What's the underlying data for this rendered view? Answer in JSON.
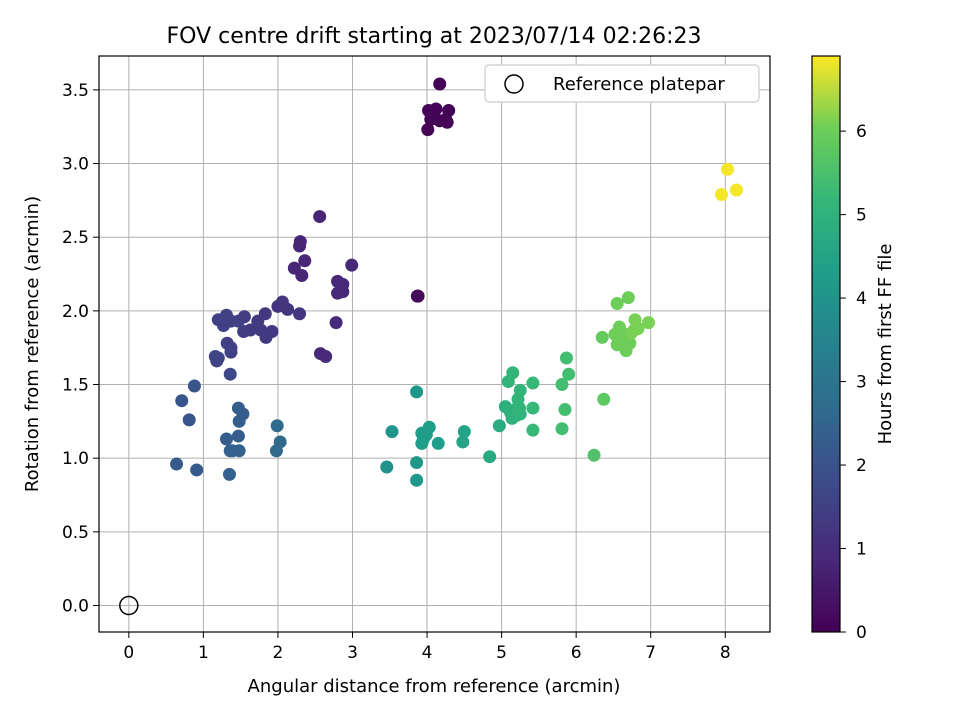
{
  "chart_data": {
    "type": "scatter",
    "title": "FOV centre drift starting at 2023/07/14 02:26:23",
    "xlabel": "Angular distance from reference (arcmin)",
    "ylabel": "Rotation from reference (arcmin)",
    "xlim": [
      -0.4,
      8.6
    ],
    "ylim": [
      -0.18,
      3.73
    ],
    "xticks": [
      "0",
      "1",
      "2",
      "3",
      "4",
      "5",
      "6",
      "7",
      "8"
    ],
    "yticks": [
      "0.0",
      "0.5",
      "1.0",
      "1.5",
      "2.0",
      "2.5",
      "3.0",
      "3.5"
    ],
    "grid": true,
    "legend": {
      "placement": "top-right",
      "entries": [
        "Reference platepar"
      ]
    },
    "reference_point": {
      "x": 0.0,
      "y": 0.0
    },
    "colorbar": {
      "label": "Hours from first FF file",
      "colormap": "viridis",
      "range": [
        0,
        6.9
      ],
      "ticks": [
        "0",
        "1",
        "2",
        "3",
        "4",
        "5",
        "6"
      ]
    },
    "points": [
      {
        "x": 4.17,
        "y": 3.54,
        "c": 0.05
      },
      {
        "x": 4.02,
        "y": 3.36,
        "c": 0.05
      },
      {
        "x": 4.12,
        "y": 3.37,
        "c": 0.05
      },
      {
        "x": 4.29,
        "y": 3.36,
        "c": 0.05
      },
      {
        "x": 4.05,
        "y": 3.3,
        "c": 0.08
      },
      {
        "x": 4.17,
        "y": 3.29,
        "c": 0.08
      },
      {
        "x": 4.25,
        "y": 3.3,
        "c": 0.08
      },
      {
        "x": 4.27,
        "y": 3.28,
        "c": 0.08
      },
      {
        "x": 4.01,
        "y": 3.23,
        "c": 0.08
      },
      {
        "x": 3.88,
        "y": 2.1,
        "c": 0.15
      },
      {
        "x": 3.87,
        "y": 2.1,
        "c": 0.15
      },
      {
        "x": 2.56,
        "y": 2.64,
        "c": 0.8
      },
      {
        "x": 2.3,
        "y": 2.47,
        "c": 0.85
      },
      {
        "x": 2.29,
        "y": 2.44,
        "c": 0.85
      },
      {
        "x": 2.36,
        "y": 2.34,
        "c": 0.85
      },
      {
        "x": 2.22,
        "y": 2.29,
        "c": 0.85
      },
      {
        "x": 2.32,
        "y": 2.24,
        "c": 0.85
      },
      {
        "x": 2.99,
        "y": 2.31,
        "c": 0.9
      },
      {
        "x": 2.8,
        "y": 2.2,
        "c": 0.9
      },
      {
        "x": 2.87,
        "y": 2.18,
        "c": 0.9
      },
      {
        "x": 2.8,
        "y": 2.12,
        "c": 0.9
      },
      {
        "x": 2.87,
        "y": 2.13,
        "c": 0.9
      },
      {
        "x": 2.78,
        "y": 1.92,
        "c": 0.95
      },
      {
        "x": 2.57,
        "y": 1.71,
        "c": 0.95
      },
      {
        "x": 2.64,
        "y": 1.69,
        "c": 0.95
      },
      {
        "x": 2.0,
        "y": 2.03,
        "c": 1.2
      },
      {
        "x": 2.06,
        "y": 2.06,
        "c": 1.2
      },
      {
        "x": 2.13,
        "y": 2.01,
        "c": 1.2
      },
      {
        "x": 2.29,
        "y": 1.98,
        "c": 1.2
      },
      {
        "x": 1.83,
        "y": 1.98,
        "c": 1.3
      },
      {
        "x": 1.73,
        "y": 1.93,
        "c": 1.3
      },
      {
        "x": 1.77,
        "y": 1.87,
        "c": 1.3
      },
      {
        "x": 1.63,
        "y": 1.87,
        "c": 1.3
      },
      {
        "x": 1.92,
        "y": 1.86,
        "c": 1.3
      },
      {
        "x": 1.84,
        "y": 1.82,
        "c": 1.3
      },
      {
        "x": 1.55,
        "y": 1.96,
        "c": 1.4
      },
      {
        "x": 1.54,
        "y": 1.86,
        "c": 1.4
      },
      {
        "x": 1.47,
        "y": 1.93,
        "c": 1.5
      },
      {
        "x": 1.31,
        "y": 1.97,
        "c": 1.5
      },
      {
        "x": 1.2,
        "y": 1.94,
        "c": 1.5
      },
      {
        "x": 1.37,
        "y": 1.93,
        "c": 1.5
      },
      {
        "x": 1.27,
        "y": 1.9,
        "c": 1.5
      },
      {
        "x": 1.32,
        "y": 1.78,
        "c": 1.5
      },
      {
        "x": 1.37,
        "y": 1.75,
        "c": 1.5
      },
      {
        "x": 1.37,
        "y": 1.72,
        "c": 1.5
      },
      {
        "x": 1.16,
        "y": 1.69,
        "c": 1.6
      },
      {
        "x": 1.2,
        "y": 1.68,
        "c": 1.6
      },
      {
        "x": 1.18,
        "y": 1.66,
        "c": 1.6
      },
      {
        "x": 1.36,
        "y": 1.57,
        "c": 1.7
      },
      {
        "x": 0.88,
        "y": 1.49,
        "c": 2.1
      },
      {
        "x": 0.71,
        "y": 1.39,
        "c": 2.1
      },
      {
        "x": 0.81,
        "y": 1.26,
        "c": 2.1
      },
      {
        "x": 0.64,
        "y": 0.96,
        "c": 2.2
      },
      {
        "x": 0.91,
        "y": 0.92,
        "c": 2.2
      },
      {
        "x": 1.47,
        "y": 1.34,
        "c": 2.3
      },
      {
        "x": 1.53,
        "y": 1.3,
        "c": 2.3
      },
      {
        "x": 1.48,
        "y": 1.25,
        "c": 2.3
      },
      {
        "x": 1.47,
        "y": 1.15,
        "c": 2.3
      },
      {
        "x": 1.31,
        "y": 1.13,
        "c": 2.3
      },
      {
        "x": 1.36,
        "y": 1.05,
        "c": 2.4
      },
      {
        "x": 1.39,
        "y": 1.05,
        "c": 2.4
      },
      {
        "x": 1.48,
        "y": 1.05,
        "c": 2.4
      },
      {
        "x": 1.35,
        "y": 0.89,
        "c": 2.4
      },
      {
        "x": 1.99,
        "y": 1.22,
        "c": 2.7
      },
      {
        "x": 2.03,
        "y": 1.11,
        "c": 2.7
      },
      {
        "x": 1.98,
        "y": 1.05,
        "c": 2.7
      },
      {
        "x": 3.86,
        "y": 1.45,
        "c": 4.1
      },
      {
        "x": 3.53,
        "y": 1.18,
        "c": 4.0
      },
      {
        "x": 3.46,
        "y": 0.94,
        "c": 4.0
      },
      {
        "x": 3.86,
        "y": 0.97,
        "c": 4.1
      },
      {
        "x": 3.86,
        "y": 0.85,
        "c": 4.1
      },
      {
        "x": 4.03,
        "y": 1.21,
        "c": 4.3
      },
      {
        "x": 3.93,
        "y": 1.17,
        "c": 4.3
      },
      {
        "x": 3.99,
        "y": 1.16,
        "c": 4.3
      },
      {
        "x": 3.95,
        "y": 1.13,
        "c": 4.3
      },
      {
        "x": 3.93,
        "y": 1.1,
        "c": 4.3
      },
      {
        "x": 4.15,
        "y": 1.1,
        "c": 4.3
      },
      {
        "x": 4.5,
        "y": 1.18,
        "c": 4.5
      },
      {
        "x": 4.48,
        "y": 1.11,
        "c": 4.5
      },
      {
        "x": 4.84,
        "y": 1.01,
        "c": 4.7
      },
      {
        "x": 4.97,
        "y": 1.22,
        "c": 4.8
      },
      {
        "x": 5.05,
        "y": 1.35,
        "c": 4.9
      },
      {
        "x": 5.12,
        "y": 1.31,
        "c": 5.0
      },
      {
        "x": 5.18,
        "y": 1.33,
        "c": 5.0
      },
      {
        "x": 5.14,
        "y": 1.27,
        "c": 5.0
      },
      {
        "x": 5.2,
        "y": 1.29,
        "c": 5.0
      },
      {
        "x": 5.25,
        "y": 1.3,
        "c": 5.0
      },
      {
        "x": 5.24,
        "y": 1.34,
        "c": 5.1
      },
      {
        "x": 5.22,
        "y": 1.4,
        "c": 5.1
      },
      {
        "x": 5.25,
        "y": 1.46,
        "c": 5.1
      },
      {
        "x": 5.09,
        "y": 1.52,
        "c": 5.1
      },
      {
        "x": 5.15,
        "y": 1.58,
        "c": 5.1
      },
      {
        "x": 5.42,
        "y": 1.51,
        "c": 5.2
      },
      {
        "x": 5.42,
        "y": 1.34,
        "c": 5.2
      },
      {
        "x": 5.42,
        "y": 1.19,
        "c": 5.2
      },
      {
        "x": 5.81,
        "y": 1.5,
        "c": 5.4
      },
      {
        "x": 5.9,
        "y": 1.57,
        "c": 5.4
      },
      {
        "x": 5.87,
        "y": 1.68,
        "c": 5.4
      },
      {
        "x": 5.85,
        "y": 1.33,
        "c": 5.4
      },
      {
        "x": 5.81,
        "y": 1.2,
        "c": 5.4
      },
      {
        "x": 6.24,
        "y": 1.02,
        "c": 5.6
      },
      {
        "x": 6.37,
        "y": 1.4,
        "c": 5.8
      },
      {
        "x": 6.35,
        "y": 1.82,
        "c": 5.9
      },
      {
        "x": 6.55,
        "y": 2.05,
        "c": 6.0
      },
      {
        "x": 6.7,
        "y": 2.09,
        "c": 6.0
      },
      {
        "x": 6.52,
        "y": 1.84,
        "c": 6.0
      },
      {
        "x": 6.58,
        "y": 1.89,
        "c": 6.0
      },
      {
        "x": 6.62,
        "y": 1.85,
        "c": 6.0
      },
      {
        "x": 6.55,
        "y": 1.77,
        "c": 6.0
      },
      {
        "x": 6.67,
        "y": 1.73,
        "c": 6.0
      },
      {
        "x": 6.72,
        "y": 1.78,
        "c": 6.0
      },
      {
        "x": 6.65,
        "y": 1.82,
        "c": 6.0
      },
      {
        "x": 6.79,
        "y": 1.94,
        "c": 6.1
      },
      {
        "x": 6.83,
        "y": 1.88,
        "c": 6.1
      },
      {
        "x": 6.97,
        "y": 1.92,
        "c": 6.1
      },
      {
        "x": 6.74,
        "y": 1.85,
        "c": 6.1
      },
      {
        "x": 6.78,
        "y": 1.87,
        "c": 6.1
      },
      {
        "x": 8.03,
        "y": 2.96,
        "c": 6.85
      },
      {
        "x": 7.95,
        "y": 2.79,
        "c": 6.85
      },
      {
        "x": 8.15,
        "y": 2.82,
        "c": 6.85
      }
    ]
  }
}
